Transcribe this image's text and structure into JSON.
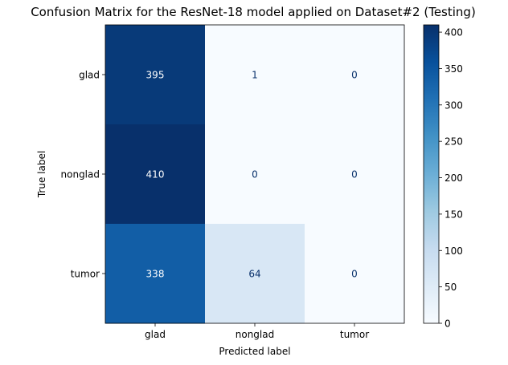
{
  "chart_data": {
    "type": "heatmap",
    "title": "Confusion Matrix for the ResNet-18 model applied on Dataset#2 (Testing)",
    "xlabel": "Predicted label",
    "ylabel": "True label",
    "x_categories": [
      "glad",
      "nonglad",
      "tumor"
    ],
    "y_categories": [
      "glad",
      "nonglad",
      "tumor"
    ],
    "values": [
      [
        395,
        1,
        0
      ],
      [
        410,
        0,
        0
      ],
      [
        338,
        64,
        0
      ]
    ],
    "colormap": "Blues",
    "vmin": 0,
    "vmax": 410,
    "colorbar_ticks": [
      0,
      50,
      100,
      150,
      200,
      250,
      300,
      350,
      400
    ],
    "grid": false,
    "colorbar": "right"
  }
}
